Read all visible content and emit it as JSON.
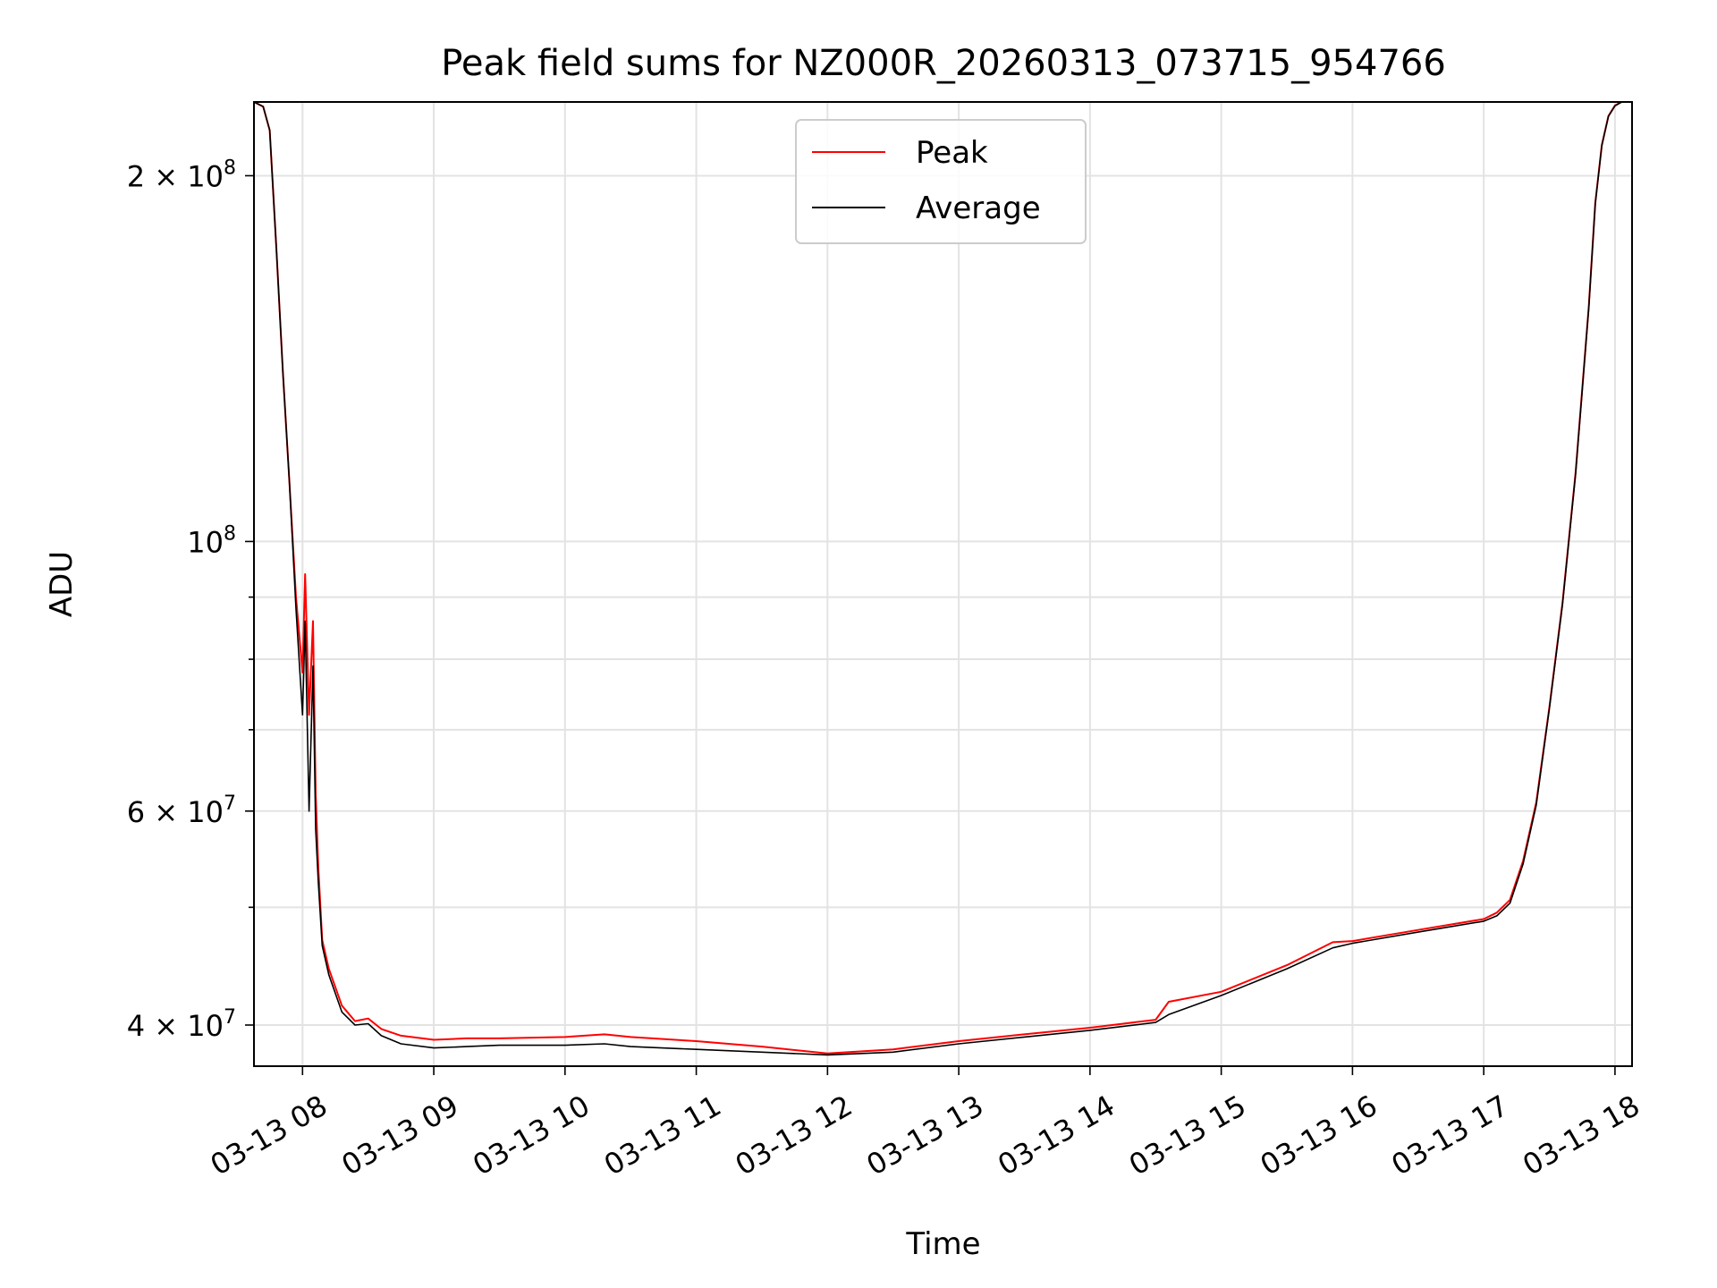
{
  "chart_data": {
    "type": "line",
    "title": "Peak field sums for NZ000R_20260313_073715_954766",
    "xlabel": "Time",
    "ylabel": "ADU",
    "yscale": "log",
    "xlim_hours": [
      7.63,
      18.13
    ],
    "ylim": [
      37000000,
      230000000
    ],
    "grid": true,
    "legend_position": "upper center",
    "x_ticks": [
      {
        "value": 8,
        "label": "03-13 08"
      },
      {
        "value": 9,
        "label": "03-13 09"
      },
      {
        "value": 10,
        "label": "03-13 10"
      },
      {
        "value": 11,
        "label": "03-13 11"
      },
      {
        "value": 12,
        "label": "03-13 12"
      },
      {
        "value": 13,
        "label": "03-13 13"
      },
      {
        "value": 14,
        "label": "03-13 14"
      },
      {
        "value": 15,
        "label": "03-13 15"
      },
      {
        "value": 16,
        "label": "03-13 16"
      },
      {
        "value": 17,
        "label": "03-13 17"
      },
      {
        "value": 18,
        "label": "03-13 18"
      }
    ],
    "y_ticks": [
      {
        "value": 40000000,
        "label": "4 × 10",
        "exp": "7"
      },
      {
        "value": 60000000,
        "label": "6 × 10",
        "exp": "7"
      },
      {
        "value": 100000000,
        "label": "10",
        "exp": "8"
      },
      {
        "value": 200000000,
        "label": "2 × 10",
        "exp": "8"
      }
    ],
    "y_minor_ticks": [
      50000000,
      70000000,
      80000000,
      90000000
    ],
    "series": [
      {
        "name": "Peak",
        "color": "#ff0000",
        "x": [
          7.63,
          7.7,
          7.75,
          7.8,
          7.85,
          7.9,
          7.95,
          8.0,
          8.02,
          8.05,
          8.08,
          8.1,
          8.12,
          8.15,
          8.2,
          8.3,
          8.4,
          8.5,
          8.6,
          8.75,
          9.0,
          9.25,
          9.5,
          10.0,
          10.3,
          10.5,
          11.0,
          11.5,
          12.0,
          12.5,
          13.0,
          13.5,
          14.0,
          14.5,
          14.6,
          15.0,
          15.5,
          15.85,
          16.0,
          16.5,
          17.0,
          17.1,
          17.2,
          17.3,
          17.4,
          17.5,
          17.6,
          17.7,
          17.8,
          17.85,
          17.9,
          17.95,
          18.0,
          18.05,
          18.13
        ],
        "y": [
          230000000,
          228000000,
          218000000,
          175000000,
          138000000,
          112000000,
          90000000,
          78000000,
          94000000,
          72000000,
          86000000,
          62000000,
          54000000,
          47000000,
          44500000,
          41500000,
          40300000,
          40500000,
          39700000,
          39200000,
          38900000,
          39000000,
          39000000,
          39100000,
          39300000,
          39100000,
          38800000,
          38400000,
          37900000,
          38200000,
          38800000,
          39300000,
          39800000,
          40400000,
          41800000,
          42600000,
          44800000,
          46800000,
          46900000,
          47900000,
          48900000,
          49500000,
          50700000,
          54600000,
          61000000,
          73000000,
          89000000,
          114000000,
          156000000,
          190000000,
          212000000,
          224000000,
          228500000,
          230000000,
          230000000
        ]
      },
      {
        "name": "Average",
        "color": "#000000",
        "x": [
          7.63,
          7.7,
          7.75,
          7.8,
          7.85,
          7.9,
          7.95,
          8.0,
          8.02,
          8.05,
          8.08,
          8.1,
          8.12,
          8.15,
          8.2,
          8.3,
          8.4,
          8.5,
          8.6,
          8.75,
          9.0,
          9.25,
          9.5,
          10.0,
          10.3,
          10.5,
          11.0,
          11.5,
          12.0,
          12.5,
          13.0,
          13.5,
          14.0,
          14.5,
          14.6,
          15.0,
          15.5,
          15.85,
          16.0,
          16.5,
          17.0,
          17.1,
          17.2,
          17.3,
          17.4,
          17.5,
          17.6,
          17.7,
          17.8,
          17.85,
          17.9,
          17.95,
          18.0,
          18.05,
          18.13
        ],
        "y": [
          230000000,
          228000000,
          218000000,
          175000000,
          138000000,
          112000000,
          88000000,
          72000000,
          86000000,
          60000000,
          79000000,
          58000000,
          52500000,
          46500000,
          44000000,
          41000000,
          40000000,
          40100000,
          39200000,
          38600000,
          38300000,
          38400000,
          38500000,
          38500000,
          38600000,
          38400000,
          38200000,
          38000000,
          37800000,
          38000000,
          38600000,
          39100000,
          39600000,
          40200000,
          40800000,
          42300000,
          44500000,
          46300000,
          46700000,
          47700000,
          48700000,
          49200000,
          50400000,
          54300000,
          60700000,
          72800000,
          88700000,
          113700000,
          155700000,
          189700000,
          211700000,
          223800000,
          228300000,
          230000000,
          230000000
        ]
      }
    ]
  }
}
